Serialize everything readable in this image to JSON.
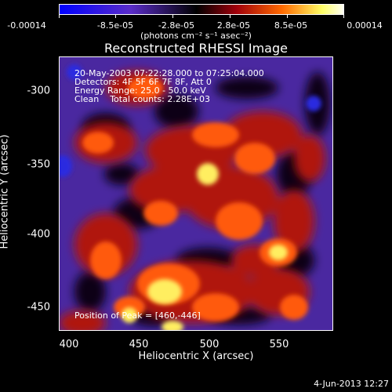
{
  "colorbar": {
    "ticks": [
      "-0.00014",
      "-8.5e-05",
      "-2.8e-05",
      "2.8e-05",
      "8.5e-05",
      "0.00014"
    ],
    "units": "(photons cm⁻² s⁻¹ asec⁻²)",
    "colors": [
      "#0000ff",
      "#5a2cc8",
      "#000000",
      "#a0000a",
      "#ff6a00",
      "#ffff66",
      "#ffffff"
    ]
  },
  "title": "Reconstructed RHESSI Image",
  "info": {
    "time_range": "20-May-2003 07:22:28.000 to 07:25:04.000",
    "detectors": "Detectors: 4F 5F 6F 7F 8F, Att 0",
    "energy": "Energy Range: 25.0 - 50.0 keV",
    "method": "Clean    Total counts: 2.28E+03",
    "peak": "Position of Peak = [460,-446]"
  },
  "axes": {
    "xlabel": "Heliocentric X (arcsec)",
    "ylabel": "Heliocentric Y (arcsec)",
    "xticks": [
      "400",
      "450",
      "500",
      "550"
    ],
    "yticks": [
      "-300",
      "-350",
      "-400",
      "-450"
    ]
  },
  "footer": {
    "date": "4-Jun-2013 12:27"
  }
}
